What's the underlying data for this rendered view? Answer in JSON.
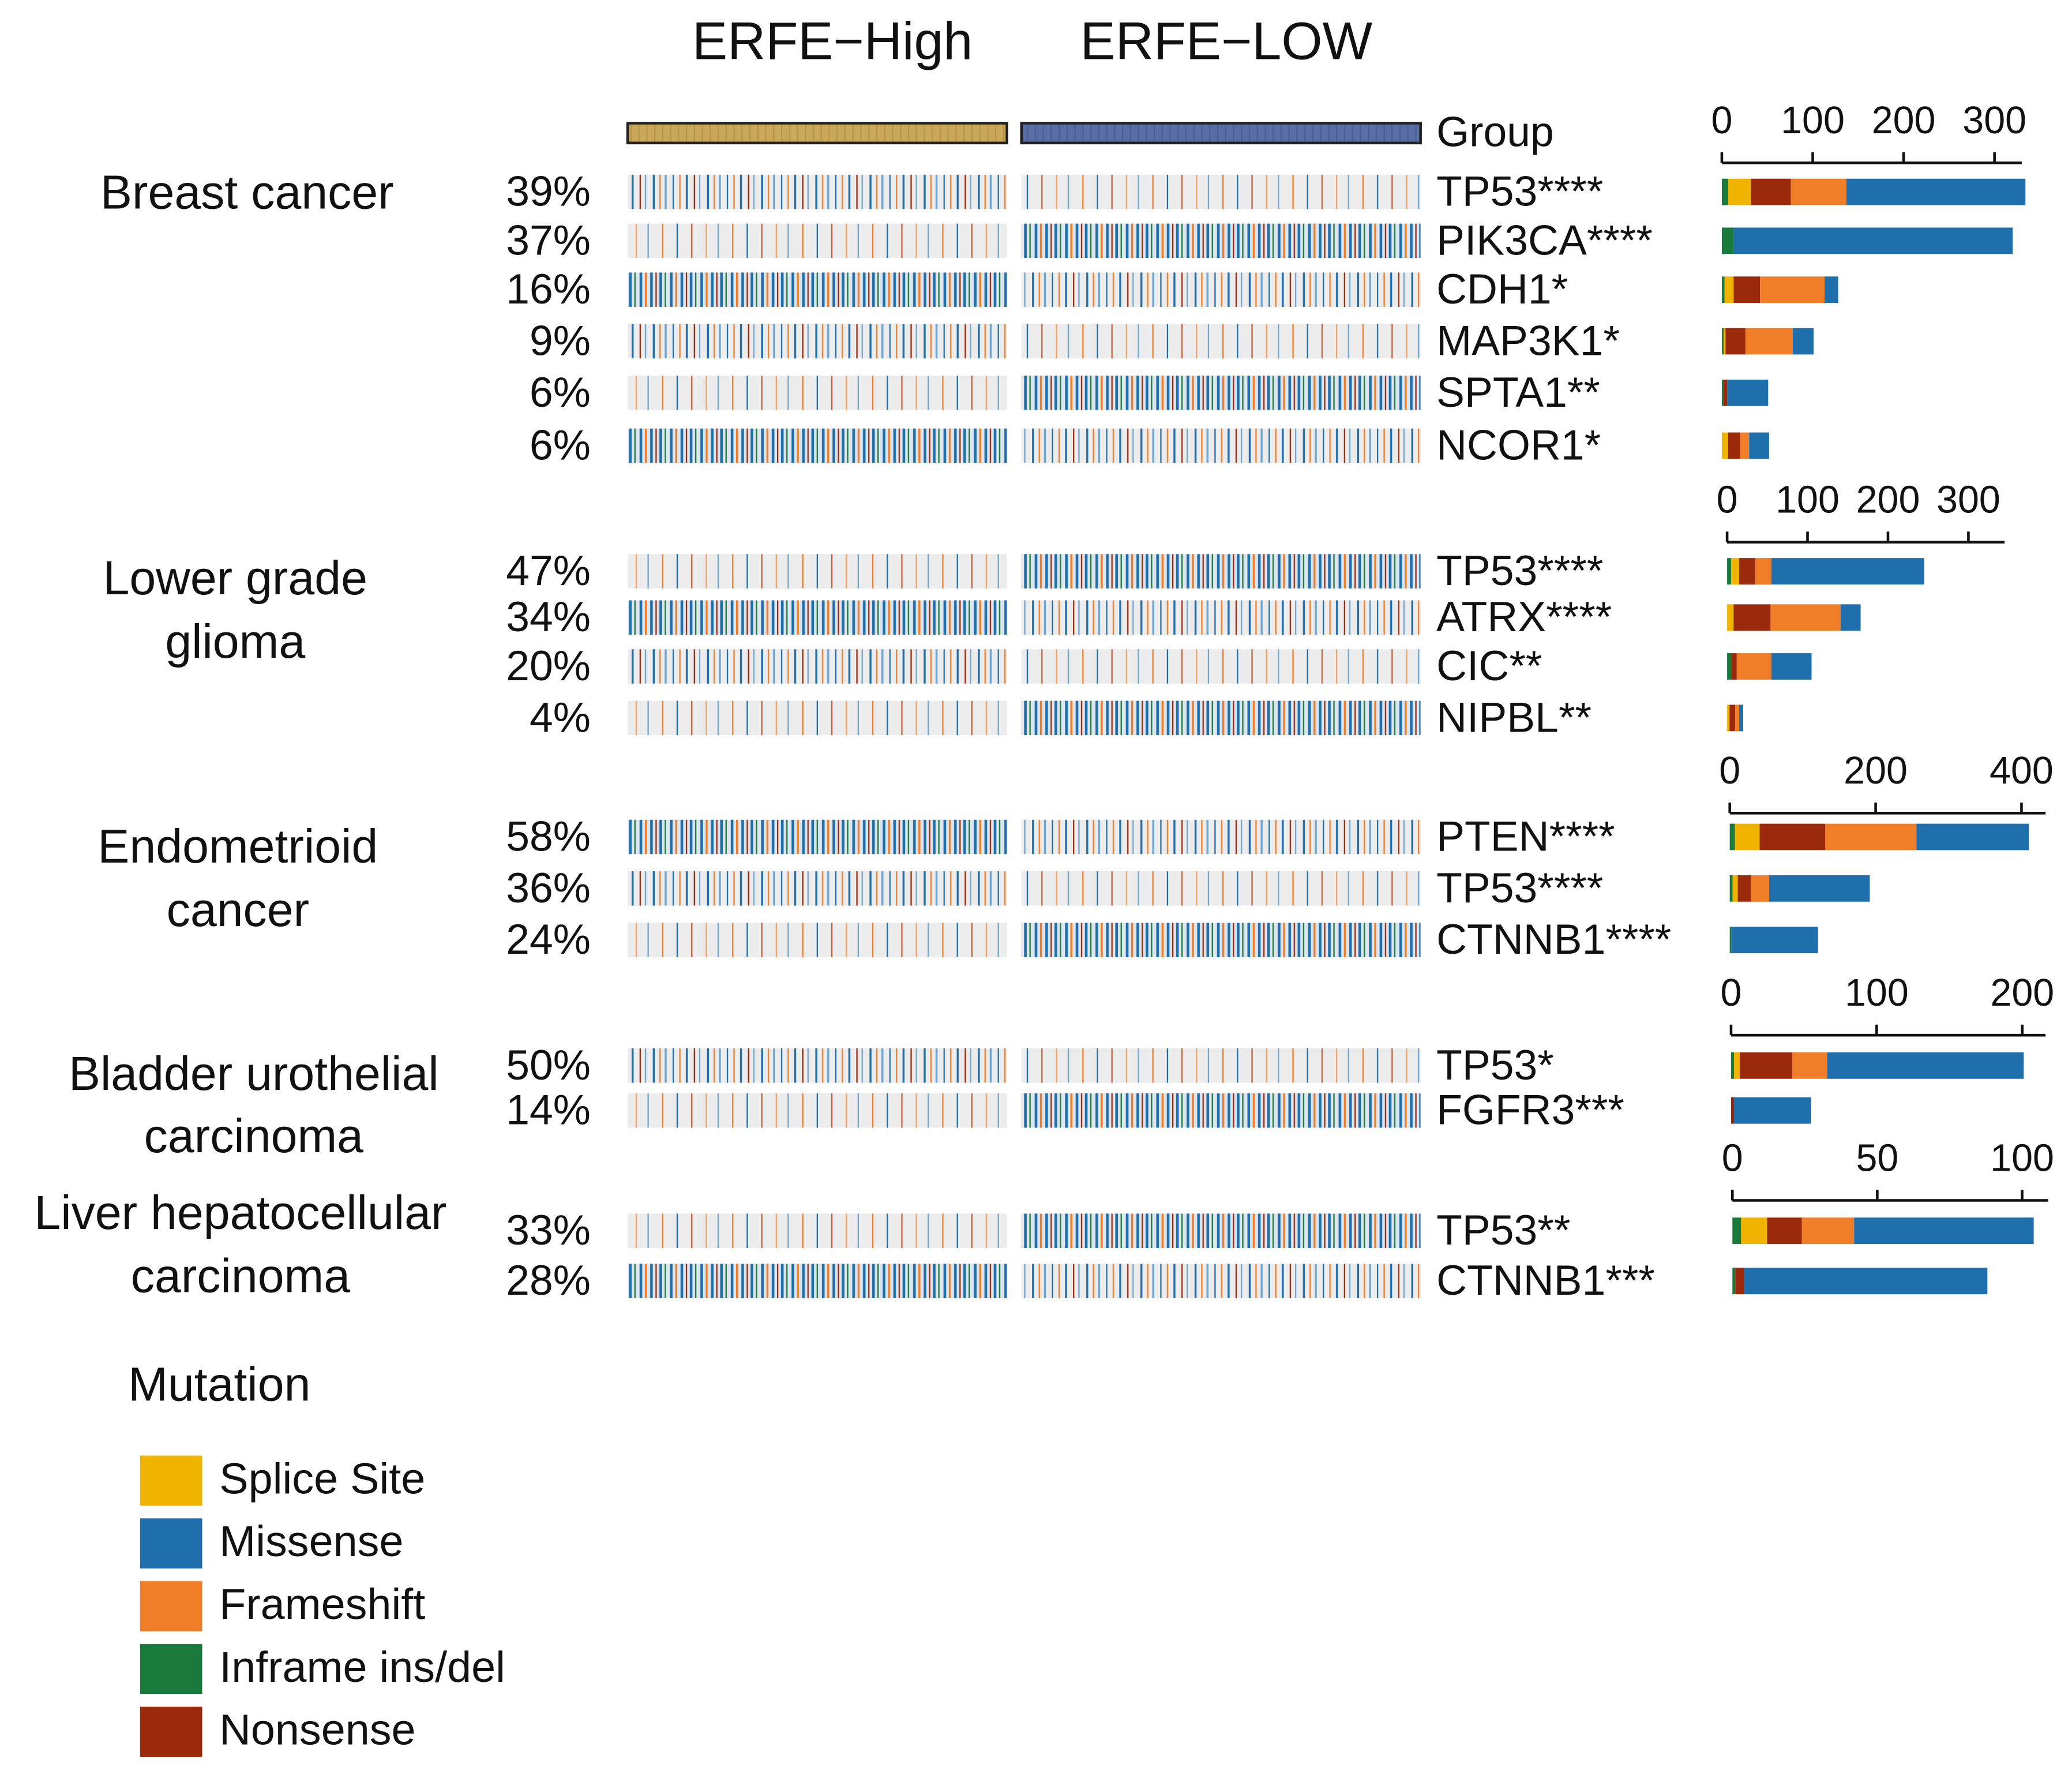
{
  "header": {
    "groups": [
      "ERFE−High",
      "ERFE−LOW"
    ],
    "group_label": "Group"
  },
  "legend": {
    "title": "Mutation",
    "items": [
      {
        "name": "Splice Site",
        "color": "#f0b400"
      },
      {
        "name": "Missense",
        "color": "#1f6fad"
      },
      {
        "name": "Frameshift",
        "color": "#f07d28"
      },
      {
        "name": "Inframe ins/del",
        "color": "#1a7a3c"
      },
      {
        "name": "Nonsense",
        "color": "#9b2a0c"
      }
    ]
  },
  "chart_data": [
    {
      "type": "bar",
      "orientation": "horizontal",
      "stacked": true,
      "title": [
        "Breast cancer"
      ],
      "categories": [
        "TP53****",
        "PIK3CA****",
        "CDH1*",
        "MAP3K1*",
        "SPTA1**",
        "NCOR1*"
      ],
      "frequencies": [
        39,
        37,
        16,
        9,
        6,
        6
      ],
      "frequency_labels": [
        "39%",
        "37%",
        "16%",
        "9%",
        "6%",
        "6%"
      ],
      "xlim": [
        0,
        330
      ],
      "xticks": [
        0,
        100,
        200,
        300
      ],
      "series": [
        {
          "color": "#1a7a3c",
          "values": [
            7,
            13,
            3,
            2,
            2,
            0
          ]
        },
        {
          "color": "#f0b400",
          "values": [
            25,
            0,
            10,
            2,
            0,
            7
          ]
        },
        {
          "color": "#9b2a0c",
          "values": [
            44,
            0,
            29,
            22,
            4,
            13
          ]
        },
        {
          "color": "#f07d28",
          "values": [
            61,
            0,
            71,
            52,
            0,
            10
          ]
        },
        {
          "color": "#1f6fad",
          "values": [
            197,
            307,
            15,
            23,
            45,
            22
          ]
        }
      ]
    },
    {
      "type": "bar",
      "orientation": "horizontal",
      "stacked": true,
      "title": [
        "Lower grade",
        "glioma"
      ],
      "categories": [
        "TP53****",
        "ATRX****",
        "CIC**",
        "NIPBL**"
      ],
      "frequencies": [
        47,
        34,
        20,
        4
      ],
      "frequency_labels": [
        "47%",
        "34%",
        "20%",
        "4%"
      ],
      "xlim": [
        0,
        345
      ],
      "xticks": [
        0,
        100,
        200,
        300
      ],
      "series": [
        {
          "color": "#1a7a3c",
          "values": [
            5,
            0,
            5,
            0
          ]
        },
        {
          "color": "#f0b400",
          "values": [
            10,
            8,
            0,
            3
          ]
        },
        {
          "color": "#9b2a0c",
          "values": [
            20,
            46,
            7,
            7
          ]
        },
        {
          "color": "#f07d28",
          "values": [
            20,
            87,
            43,
            5
          ]
        },
        {
          "color": "#1f6fad",
          "values": [
            190,
            25,
            50,
            5
          ]
        }
      ]
    },
    {
      "type": "bar",
      "orientation": "horizontal",
      "stacked": true,
      "title": [
        "Endometrioid",
        "cancer"
      ],
      "categories": [
        "PTEN****",
        "TP53****",
        "CTNNB1****"
      ],
      "frequencies": [
        58,
        36,
        24
      ],
      "frequency_labels": [
        "58%",
        "36%",
        "24%"
      ],
      "xlim": [
        0,
        433
      ],
      "xticks": [
        0,
        200,
        400
      ],
      "series": [
        {
          "color": "#1a7a3c",
          "values": [
            7,
            4,
            2
          ]
        },
        {
          "color": "#f0b400",
          "values": [
            34,
            7,
            0
          ]
        },
        {
          "color": "#9b2a0c",
          "values": [
            90,
            18,
            0
          ]
        },
        {
          "color": "#f07d28",
          "values": [
            125,
            25,
            0
          ]
        },
        {
          "color": "#1f6fad",
          "values": [
            154,
            138,
            119
          ]
        }
      ]
    },
    {
      "type": "bar",
      "orientation": "horizontal",
      "stacked": true,
      "title": [
        "Bladder urothelial",
        "carcinoma"
      ],
      "categories": [
        "TP53*",
        "FGFR3***"
      ],
      "frequencies": [
        50,
        14
      ],
      "frequency_labels": [
        "50%",
        "14%"
      ],
      "xlim": [
        0,
        216
      ],
      "xticks": [
        0,
        100,
        200
      ],
      "series": [
        {
          "color": "#1a7a3c",
          "values": [
            2,
            0
          ]
        },
        {
          "color": "#f0b400",
          "values": [
            4,
            0
          ]
        },
        {
          "color": "#9b2a0c",
          "values": [
            36,
            2
          ]
        },
        {
          "color": "#f07d28",
          "values": [
            24,
            0
          ]
        },
        {
          "color": "#1f6fad",
          "values": [
            135,
            53
          ]
        }
      ]
    },
    {
      "type": "bar",
      "orientation": "horizontal",
      "stacked": true,
      "title": [
        "Liver hepatocellular",
        "carcinoma"
      ],
      "categories": [
        "TP53**",
        "CTNNB1***"
      ],
      "frequencies": [
        33,
        28
      ],
      "frequency_labels": [
        "33%",
        "28%"
      ],
      "xlim": [
        0,
        109
      ],
      "xticks": [
        0,
        50,
        100
      ],
      "series": [
        {
          "color": "#1a7a3c",
          "values": [
            3,
            1
          ]
        },
        {
          "color": "#f0b400",
          "values": [
            9,
            0
          ]
        },
        {
          "color": "#9b2a0c",
          "values": [
            12,
            3
          ]
        },
        {
          "color": "#f07d28",
          "values": [
            18,
            0
          ]
        },
        {
          "color": "#1f6fad",
          "values": [
            62,
            84
          ]
        }
      ]
    }
  ]
}
